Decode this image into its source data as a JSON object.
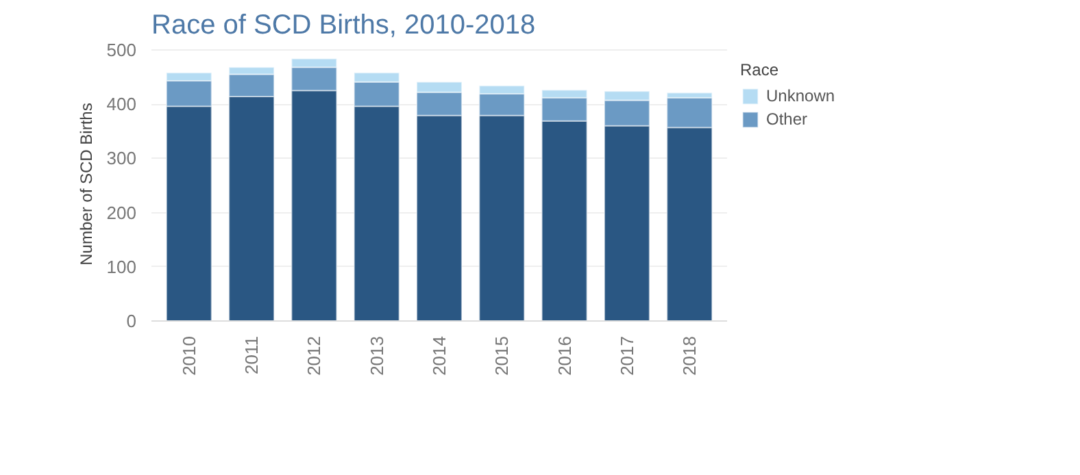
{
  "chart_data": {
    "type": "bar",
    "title": "Race of SCD Births, 2010-2018",
    "ylabel": "Number of SCD Births",
    "legend_title": "Race",
    "categories": [
      "2010",
      "2011",
      "2012",
      "2013",
      "2014",
      "2015",
      "2016",
      "2017",
      "2018"
    ],
    "stacked": true,
    "ylim": [
      0,
      505
    ],
    "yticks": [
      0,
      100,
      200,
      300,
      400,
      500
    ],
    "grid": "y",
    "legend": "right",
    "series": [
      {
        "color": "#2a5783",
        "values": [
          396,
          414,
          425,
          396,
          379,
          379,
          369,
          360,
          357
        ]
      },
      {
        "name": "Other",
        "color": "#6b9ac4",
        "values": [
          47,
          41,
          43,
          45,
          43,
          40,
          43,
          47,
          55
        ]
      },
      {
        "name": "Unknown",
        "color": "#b5dcf3",
        "values": [
          15,
          13,
          16,
          17,
          19,
          15,
          14,
          17,
          9
        ]
      }
    ]
  }
}
